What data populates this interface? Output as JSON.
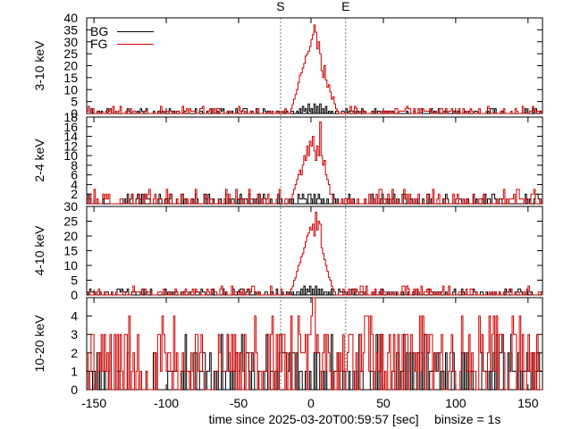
{
  "chart_data": {
    "type": "line",
    "xlabel": "time since 2025-03-20T00:59:57 [sec]",
    "binsize_label": "binsize = 1s",
    "x_ticks": [
      -150,
      -100,
      -50,
      0,
      50,
      100,
      150
    ],
    "xlim": [
      -155,
      160
    ],
    "markers": [
      {
        "label": "S",
        "x": -21
      },
      {
        "label": "E",
        "x": 24
      }
    ],
    "legend": {
      "placement": "top-left",
      "entries": [
        {
          "name": "BG",
          "color": "#000000"
        },
        {
          "name": "FG",
          "color": "#cc0000"
        }
      ]
    },
    "series_colors": {
      "BG": "#000000",
      "FG": "#cc0000"
    },
    "panels": [
      {
        "ylabel": "3-10 keV",
        "ylim": [
          0,
          40
        ],
        "y_ticks": [
          0,
          5,
          10,
          15,
          20,
          25,
          30,
          35,
          40
        ],
        "burst": [
          [
            -14,
            2
          ],
          [
            -13,
            4
          ],
          [
            -12,
            6
          ],
          [
            -11,
            8
          ],
          [
            -10,
            10
          ],
          [
            -9,
            13
          ],
          [
            -8,
            16
          ],
          [
            -7,
            17
          ],
          [
            -6,
            19
          ],
          [
            -5,
            21
          ],
          [
            -4,
            24
          ],
          [
            -3,
            25
          ],
          [
            -2,
            26
          ],
          [
            -1,
            28
          ],
          [
            0,
            31
          ],
          [
            1,
            33
          ],
          [
            2,
            37
          ],
          [
            3,
            34
          ],
          [
            4,
            27
          ],
          [
            5,
            30
          ],
          [
            6,
            25
          ],
          [
            7,
            18
          ],
          [
            8,
            15
          ],
          [
            9,
            20
          ],
          [
            10,
            14
          ],
          [
            11,
            11
          ],
          [
            12,
            12
          ],
          [
            13,
            9
          ],
          [
            14,
            6
          ],
          [
            15,
            7
          ],
          [
            16,
            4
          ],
          [
            17,
            2
          ]
        ],
        "bg_burst": [
          [
            -10,
            1
          ],
          [
            -8,
            2
          ],
          [
            -6,
            3
          ],
          [
            -4,
            2
          ],
          [
            -2,
            4
          ],
          [
            0,
            2
          ],
          [
            2,
            4
          ],
          [
            4,
            3
          ],
          [
            6,
            4
          ],
          [
            8,
            2
          ],
          [
            10,
            3
          ],
          [
            12,
            1
          ]
        ]
      },
      {
        "ylabel": "2-4 keV",
        "ylim": [
          0,
          18
        ],
        "y_ticks": [
          2,
          4,
          6,
          8,
          10,
          12,
          14,
          16,
          18
        ],
        "burst": [
          [
            -14,
            1
          ],
          [
            -13,
            2
          ],
          [
            -12,
            3
          ],
          [
            -11,
            4
          ],
          [
            -10,
            5
          ],
          [
            -9,
            6
          ],
          [
            -8,
            7
          ],
          [
            -7,
            6
          ],
          [
            -6,
            8
          ],
          [
            -5,
            10
          ],
          [
            -4,
            9
          ],
          [
            -3,
            12
          ],
          [
            -2,
            10
          ],
          [
            -1,
            13
          ],
          [
            0,
            12
          ],
          [
            1,
            14
          ],
          [
            2,
            11
          ],
          [
            3,
            9
          ],
          [
            4,
            12
          ],
          [
            5,
            10
          ],
          [
            6,
            17
          ],
          [
            7,
            10
          ],
          [
            8,
            8
          ],
          [
            9,
            9
          ],
          [
            10,
            6
          ],
          [
            11,
            5
          ],
          [
            12,
            4
          ],
          [
            13,
            2
          ],
          [
            14,
            2
          ],
          [
            15,
            1
          ]
        ],
        "bg_burst": [
          [
            -8,
            1
          ],
          [
            -6,
            2
          ],
          [
            -4,
            1
          ],
          [
            -2,
            2
          ],
          [
            0,
            1
          ],
          [
            2,
            2
          ],
          [
            4,
            1
          ],
          [
            6,
            1
          ],
          [
            8,
            1
          ]
        ]
      },
      {
        "ylabel": "4-10 keV",
        "ylim": [
          0,
          30
        ],
        "y_ticks": [
          0,
          5,
          10,
          15,
          20,
          25,
          30
        ],
        "burst": [
          [
            -14,
            2
          ],
          [
            -13,
            3
          ],
          [
            -12,
            5
          ],
          [
            -11,
            6
          ],
          [
            -10,
            8
          ],
          [
            -9,
            10
          ],
          [
            -8,
            11
          ],
          [
            -7,
            13
          ],
          [
            -6,
            14
          ],
          [
            -5,
            16
          ],
          [
            -4,
            18
          ],
          [
            -3,
            20
          ],
          [
            -2,
            21
          ],
          [
            -1,
            23
          ],
          [
            0,
            22
          ],
          [
            1,
            24
          ],
          [
            2,
            20
          ],
          [
            3,
            28
          ],
          [
            4,
            22
          ],
          [
            5,
            25
          ],
          [
            6,
            24
          ],
          [
            7,
            16
          ],
          [
            8,
            14
          ],
          [
            9,
            12
          ],
          [
            10,
            10
          ],
          [
            11,
            8
          ],
          [
            12,
            6
          ],
          [
            13,
            5
          ],
          [
            14,
            3
          ],
          [
            15,
            2
          ]
        ],
        "bg_burst": [
          [
            -9,
            1
          ],
          [
            -7,
            2
          ],
          [
            -5,
            3
          ],
          [
            -3,
            2
          ],
          [
            -1,
            3
          ],
          [
            1,
            2
          ],
          [
            3,
            3
          ],
          [
            5,
            2
          ],
          [
            7,
            2
          ],
          [
            9,
            1
          ]
        ]
      },
      {
        "ylabel": "10-20 keV",
        "ylim": [
          0,
          5
        ],
        "y_ticks": [
          0,
          1,
          2,
          3,
          4
        ],
        "burst": [
          [
            -1,
            3
          ],
          [
            0,
            4
          ],
          [
            1,
            5
          ],
          [
            2,
            5
          ],
          [
            3,
            2
          ],
          [
            4,
            3
          ],
          [
            5,
            2
          ]
        ],
        "bg_burst": []
      }
    ]
  }
}
